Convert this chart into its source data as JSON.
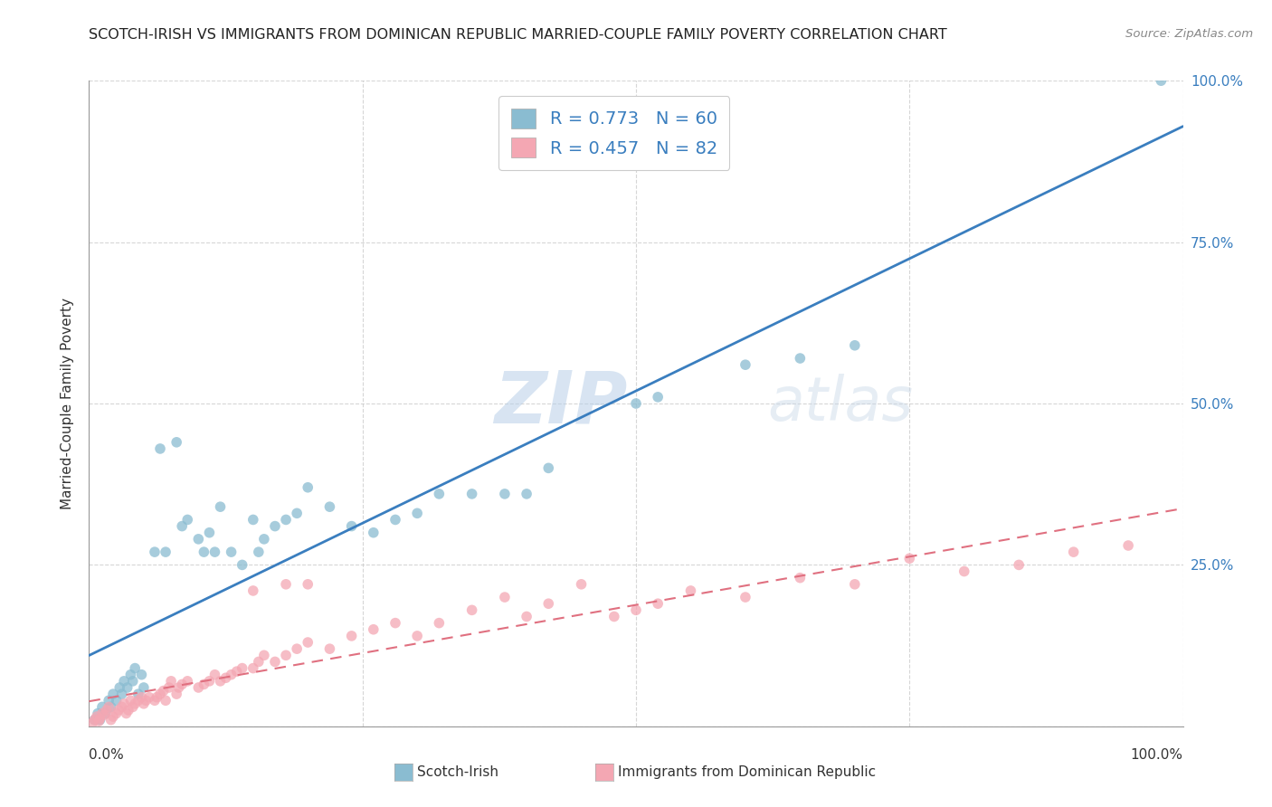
{
  "title": "SCOTCH-IRISH VS IMMIGRANTS FROM DOMINICAN REPUBLIC MARRIED-COUPLE FAMILY POVERTY CORRELATION CHART",
  "source": "Source: ZipAtlas.com",
  "ylabel": "Married-Couple Family Poverty",
  "watermark_zip": "ZIP",
  "watermark_atlas": "atlas",
  "series1_name": "Scotch-Irish",
  "series2_name": "Immigrants from Dominican Republic",
  "series1_R": 0.773,
  "series1_N": 60,
  "series2_R": 0.457,
  "series2_N": 82,
  "series1_color": "#8abcd1",
  "series2_color": "#f4a7b3",
  "series1_line_color": "#3a7ebf",
  "series2_line_color": "#e07080",
  "background_color": "#ffffff",
  "grid_color": "#cccccc",
  "title_color": "#222222",
  "legend_text_color": "#3a7ebf",
  "right_tick_color": "#3a7ebf",
  "watermark_color_zip": "#b8cfe8",
  "watermark_color_atlas": "#c8d8e8"
}
